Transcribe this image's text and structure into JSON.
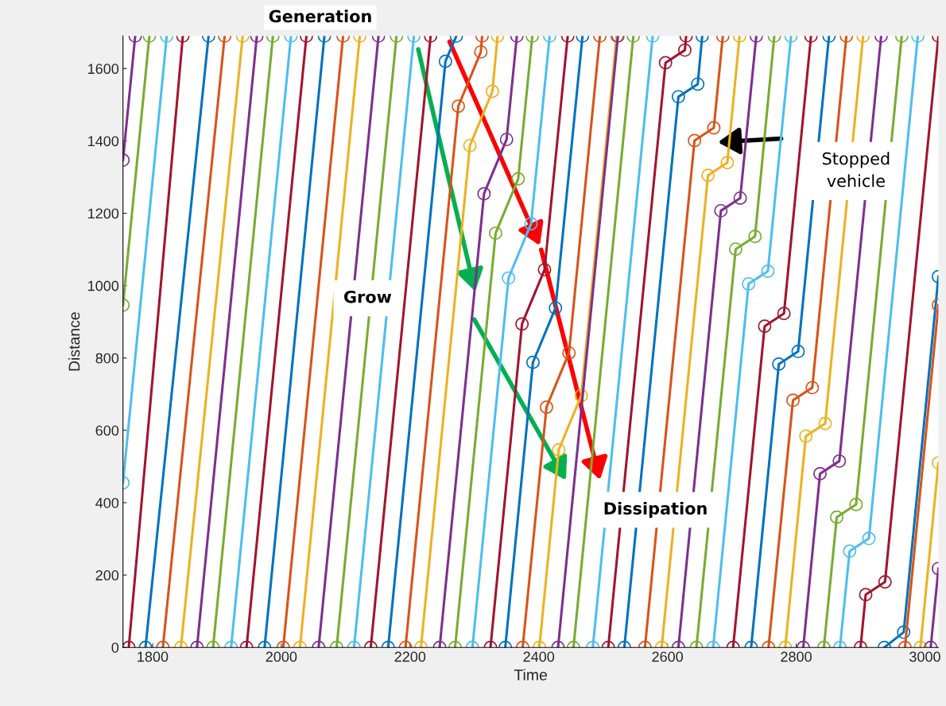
{
  "chart_data": {
    "type": "line",
    "xlabel": "Time",
    "ylabel": "Distance",
    "marker": "circle",
    "line_style": "solid",
    "grid": false,
    "legend": false,
    "xlim": [
      1754,
      3021
    ],
    "ylim": [
      0,
      1690
    ],
    "xticks": [
      1800,
      2000,
      2200,
      2400,
      2600,
      2800,
      3000
    ],
    "yticks": [
      0,
      200,
      400,
      600,
      800,
      1000,
      1200,
      1400,
      1600
    ],
    "annotations": [
      "Generation",
      "Grow",
      "Dissipation",
      "Stopped\nvehicle"
    ],
    "series": [
      {
        "color": "#7e2f8e",
        "x": [
          1754,
          1773
        ],
        "values": [
          1347,
          1690
        ]
      },
      {
        "color": "#77ac30",
        "x": [
          1754,
          1795
        ],
        "values": [
          946,
          1690
        ]
      },
      {
        "color": "#4dbeee",
        "x": [
          1754,
          1822
        ],
        "values": [
          455,
          1690
        ]
      },
      {
        "color": "#a2142f",
        "x": [
          1763,
          1847
        ],
        "values": [
          0,
          1690
        ]
      },
      {
        "color": "#0072bd",
        "x": [
          1789,
          1887
        ],
        "values": [
          0,
          1690
        ]
      },
      {
        "color": "#d95319",
        "x": [
          1816,
          1912
        ],
        "values": [
          0,
          1690
        ]
      },
      {
        "color": "#edb120",
        "x": [
          1844,
          1940
        ],
        "values": [
          0,
          1690
        ]
      },
      {
        "color": "#7e2f8e",
        "x": [
          1869,
          1962
        ],
        "values": [
          0,
          1690
        ]
      },
      {
        "color": "#77ac30",
        "x": [
          1894,
          1987
        ],
        "values": [
          0,
          1690
        ]
      },
      {
        "color": "#4dbeee",
        "x": [
          1922,
          2015
        ],
        "values": [
          0,
          1690
        ]
      },
      {
        "color": "#a2142f",
        "x": [
          1946,
          2039
        ],
        "values": [
          0,
          1690
        ]
      },
      {
        "color": "#0072bd",
        "x": [
          1974,
          2067
        ],
        "values": [
          0,
          1690
        ]
      },
      {
        "color": "#d95319",
        "x": [
          2003,
          2096
        ],
        "values": [
          0,
          1690
        ]
      },
      {
        "color": "#edb120",
        "x": [
          2029,
          2122
        ],
        "values": [
          0,
          1690
        ]
      },
      {
        "color": "#7e2f8e",
        "x": [
          2058,
          2151
        ],
        "values": [
          0,
          1690
        ]
      },
      {
        "color": "#77ac30",
        "x": [
          2086,
          2179
        ],
        "values": [
          0,
          1690
        ]
      },
      {
        "color": "#4dbeee",
        "x": [
          2113,
          2206
        ],
        "values": [
          0,
          1690
        ]
      },
      {
        "color": "#a2142f",
        "x": [
          2139,
          2232
        ],
        "values": [
          0,
          1690
        ]
      },
      {
        "color": "#0072bd",
        "x": [
          2166,
          2255,
          2272
        ],
        "values": [
          0,
          1620,
          1690
        ]
      },
      {
        "color": "#d95319",
        "x": [
          2193,
          2275,
          2310,
          2312
        ],
        "values": [
          0,
          1496,
          1646,
          1690
        ]
      },
      {
        "color": "#edb120",
        "x": [
          2217,
          2293,
          2328,
          2336
        ],
        "values": [
          0,
          1387,
          1537,
          1690
        ]
      },
      {
        "color": "#7e2f8e",
        "x": [
          2246,
          2315,
          2350,
          2366
        ],
        "values": [
          0,
          1254,
          1404,
          1690
        ]
      },
      {
        "color": "#77ac30",
        "x": [
          2270,
          2333,
          2368,
          2390
        ],
        "values": [
          0,
          1145,
          1295,
          1690
        ]
      },
      {
        "color": "#4dbeee",
        "x": [
          2297,
          2353,
          2388,
          2417
        ],
        "values": [
          0,
          1021,
          1171,
          1690
        ]
      },
      {
        "color": "#a2142f",
        "x": [
          2325,
          2374,
          2409,
          2445
        ],
        "values": [
          0,
          894,
          1044,
          1690
        ]
      },
      {
        "color": "#0072bd",
        "x": [
          2348,
          2391,
          2426,
          2468
        ],
        "values": [
          0,
          788,
          938,
          1690
        ]
      },
      {
        "color": "#d95319",
        "x": [
          2375,
          2412,
          2447,
          2495
        ],
        "values": [
          0,
          664,
          814,
          1690
        ]
      },
      {
        "color": "#edb120",
        "x": [
          2401,
          2431,
          2466,
          2521
        ],
        "values": [
          0,
          546,
          696,
          1690
        ]
      },
      {
        "color": "#7e2f8e",
        "x": [
          2430,
          2523
        ],
        "values": [
          0,
          1690
        ]
      },
      {
        "color": "#77ac30",
        "x": [
          2454,
          2547
        ],
        "values": [
          0,
          1690
        ]
      },
      {
        "color": "#4dbeee",
        "x": [
          2484,
          2577
        ],
        "values": [
          0,
          1690
        ]
      },
      {
        "color": "#a2142f",
        "x": [
          2508,
          2597,
          2627,
          2629
        ],
        "values": [
          0,
          1616,
          1651,
          1690
        ]
      },
      {
        "color": "#0072bd",
        "x": [
          2533,
          2617,
          2647,
          2654
        ],
        "values": [
          0,
          1522,
          1557,
          1690
        ]
      },
      {
        "color": "#d95319",
        "x": [
          2565,
          2642,
          2672,
          2686
        ],
        "values": [
          0,
          1401,
          1436,
          1690
        ]
      },
      {
        "color": "#edb120",
        "x": [
          2591,
          2663,
          2693,
          2712
        ],
        "values": [
          0,
          1305,
          1340,
          1690
        ]
      },
      {
        "color": "#7e2f8e",
        "x": [
          2617,
          2683,
          2713,
          2738
        ],
        "values": [
          0,
          1207,
          1242,
          1690
        ]
      },
      {
        "color": "#77ac30",
        "x": [
          2645,
          2706,
          2736,
          2766
        ],
        "values": [
          0,
          1101,
          1136,
          1690
        ]
      },
      {
        "color": "#4dbeee",
        "x": [
          2671,
          2726,
          2756,
          2792
        ],
        "values": [
          0,
          1005,
          1040,
          1690
        ]
      },
      {
        "color": "#a2142f",
        "x": [
          2702,
          2751,
          2781,
          2823
        ],
        "values": [
          0,
          888,
          923,
          1690
        ]
      },
      {
        "color": "#0072bd",
        "x": [
          2730,
          2773,
          2803,
          2851
        ],
        "values": [
          0,
          783,
          818,
          1690
        ]
      },
      {
        "color": "#d95319",
        "x": [
          2757,
          2795,
          2825,
          2878
        ],
        "values": [
          0,
          683,
          718,
          1690
        ]
      },
      {
        "color": "#edb120",
        "x": [
          2783,
          2815,
          2845,
          2904
        ],
        "values": [
          0,
          584,
          619,
          1690
        ]
      },
      {
        "color": "#7e2f8e",
        "x": [
          2811,
          2837,
          2867,
          2932
        ],
        "values": [
          0,
          480,
          515,
          1690
        ]
      },
      {
        "color": "#77ac30",
        "x": [
          2843,
          2863,
          2893,
          2964
        ],
        "values": [
          0,
          360,
          395,
          1690
        ]
      },
      {
        "color": "#4dbeee",
        "x": [
          2868,
          2883,
          2913,
          2989
        ],
        "values": [
          0,
          266,
          301,
          1690
        ]
      },
      {
        "color": "#a2142f",
        "x": [
          2900,
          2908,
          2938,
          3021
        ],
        "values": [
          0,
          146,
          181,
          1690
        ]
      },
      {
        "color": "#0072bd",
        "x": [
          2937,
          2967,
          3021
        ],
        "values": [
          0,
          42,
          1025
        ]
      },
      {
        "color": "#d95319",
        "x": [
          2969,
          3021
        ],
        "values": [
          0,
          946
        ]
      },
      {
        "color": "#edb120",
        "x": [
          2993,
          3021
        ],
        "values": [
          0,
          510
        ]
      },
      {
        "color": "#7e2f8e",
        "x": [
          3009,
          3021
        ],
        "values": [
          0,
          218
        ]
      }
    ]
  }
}
